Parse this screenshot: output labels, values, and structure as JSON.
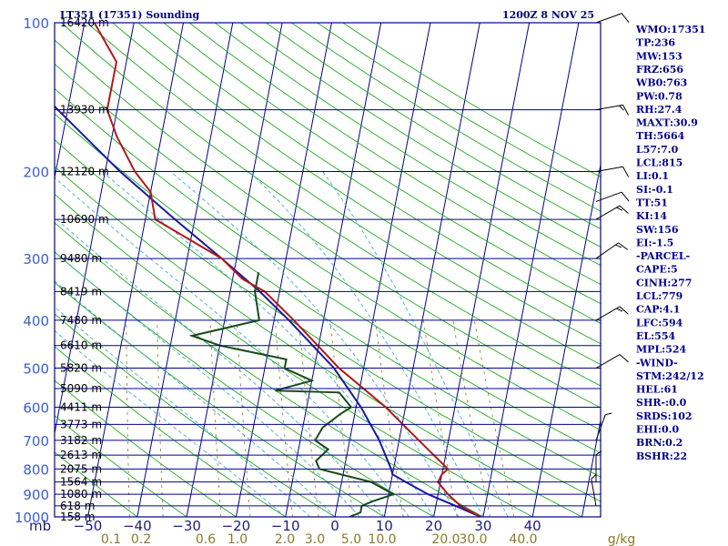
{
  "header": {
    "station": "LT351 (17351) Sounding",
    "time": "1200Z  8 NOV 25"
  },
  "indices": [
    "WMO:17351",
    "TP:236",
    "MW:153",
    "FRZ:656",
    "WB0:763",
    "PW:0.78",
    "RH:27.4",
    "MAXT:30.9",
    "TH:5664",
    "L57:7.0",
    "LCL:815",
    "LI:0.1",
    "SI:-0.1",
    "TT:51",
    "KI:14",
    "SW:156",
    "EI:-1.5",
    "-PARCEL-",
    "CAPE:5",
    "CINH:277",
    "LCL:779",
    "CAP:4.1",
    "LFC:594",
    "EL:554",
    "MPL:524",
    "-WIND-",
    "STM:242/12",
    "HEL:61",
    "SHR-:0.0",
    "SRDS:102",
    "EHI:0.0",
    "BRN:0.2",
    "BSHR:22"
  ],
  "colors": {
    "isobar": "#00008b",
    "isotherm": "#00008b",
    "dry_adiabat": "#22aa22",
    "moist_adiabat": "#4aa8d8",
    "mixing_ratio": "#8a7a2a",
    "temperature": "#b01818",
    "dewpoint": "#1a4a1a",
    "parcel": "#1a1aa0"
  },
  "chart_data": {
    "type": "line",
    "title": "LT351 (17351) Sounding",
    "xlabel": "",
    "ylabel": "mb",
    "yscale": "log",
    "pressure_levels": [
      100,
      200,
      300,
      400,
      500,
      600,
      700,
      800,
      900,
      1000
    ],
    "pressure_labels": [
      "100",
      "200",
      "300",
      "400",
      "500",
      "600",
      "700",
      "800",
      "900",
      "1000"
    ],
    "x_unit_label": "mb",
    "temperature_ticks": [
      "−50",
      "−40",
      "−30",
      "−20",
      "−10",
      "0",
      "10",
      "20",
      "30",
      "40"
    ],
    "temperature_tick_values": [
      -50,
      -40,
      -30,
      -20,
      -10,
      0,
      10,
      20,
      30,
      40
    ],
    "mixing_ratio_label_unit": "g/kg",
    "mixing_ratio_labels": [
      "0.1",
      "0.2",
      "0.6",
      "1.0",
      "2.0",
      "3.0",
      "5.0",
      "10.0",
      "20.0",
      "30.0",
      "40.0"
    ],
    "heights": [
      {
        "p": 100,
        "label": "16420 m"
      },
      {
        "p": 150,
        "label": "13930 m"
      },
      {
        "p": 200,
        "label": "12120 m"
      },
      {
        "p": 250,
        "label": "10690 m"
      },
      {
        "p": 300,
        "label": "9480 m"
      },
      {
        "p": 350,
        "label": "8419 m"
      },
      {
        "p": 400,
        "label": "7480 m"
      },
      {
        "p": 450,
        "label": "6610 m"
      },
      {
        "p": 500,
        "label": "5820 m"
      },
      {
        "p": 550,
        "label": "5090 m"
      },
      {
        "p": 600,
        "label": "4411 m"
      },
      {
        "p": 650,
        "label": "3773 m"
      },
      {
        "p": 700,
        "label": "3182 m"
      },
      {
        "p": 750,
        "label": "2613 m"
      },
      {
        "p": 800,
        "label": "2075 m"
      },
      {
        "p": 850,
        "label": "1564 m"
      },
      {
        "p": 900,
        "label": "1080 m"
      },
      {
        "p": 950,
        "label": "618 m"
      },
      {
        "p": 1000,
        "label": "158 m"
      }
    ],
    "series": [
      {
        "key": "temperature",
        "points": [
          [
            1000,
            29.5
          ],
          [
            950,
            25
          ],
          [
            900,
            22
          ],
          [
            850,
            19.5
          ],
          [
            820,
            20
          ],
          [
            800,
            21
          ],
          [
            770,
            19
          ],
          [
            700,
            14
          ],
          [
            600,
            6
          ],
          [
            500,
            -5
          ],
          [
            400,
            -16
          ],
          [
            350,
            -23
          ],
          [
            330,
            -28
          ],
          [
            300,
            -33
          ],
          [
            250,
            -48
          ],
          [
            220,
            -50
          ],
          [
            200,
            -54
          ],
          [
            170,
            -59
          ],
          [
            150,
            -62
          ],
          [
            120,
            -62
          ],
          [
            100,
            -68
          ]
        ]
      },
      {
        "key": "dewpoint",
        "points": [
          [
            1000,
            3
          ],
          [
            980,
            5
          ],
          [
            950,
            5
          ],
          [
            930,
            7
          ],
          [
            900,
            11
          ],
          [
            850,
            6
          ],
          [
            800,
            -5
          ],
          [
            770,
            -6
          ],
          [
            730,
            -4
          ],
          [
            700,
            -7
          ],
          [
            660,
            -6
          ],
          [
            620,
            -3
          ],
          [
            600,
            -1
          ],
          [
            560,
            -4
          ],
          [
            555,
            -17
          ],
          [
            530,
            -10
          ],
          [
            500,
            -16
          ],
          [
            480,
            -16
          ],
          [
            450,
            -30
          ],
          [
            430,
            -36
          ],
          [
            400,
            -23
          ],
          [
            350,
            -25
          ],
          [
            320,
            -25
          ]
        ]
      },
      {
        "key": "parcel",
        "points": [
          [
            1000,
            29.5
          ],
          [
            950,
            24
          ],
          [
            900,
            18
          ],
          [
            850,
            13
          ],
          [
            820,
            10
          ],
          [
            800,
            9.5
          ],
          [
            700,
            6
          ],
          [
            600,
            1
          ],
          [
            500,
            -6
          ],
          [
            400,
            -17
          ],
          [
            350,
            -24
          ],
          [
            300,
            -33
          ],
          [
            250,
            -44
          ],
          [
            200,
            -57
          ],
          [
            150,
            -72
          ],
          [
            120,
            -83
          ],
          [
            100,
            -95
          ]
        ]
      }
    ],
    "wind_barbs": [
      {
        "p": 100,
        "dir": 250,
        "spd": 10
      },
      {
        "p": 150,
        "dir": 260,
        "spd": 15
      },
      {
        "p": 200,
        "dir": 260,
        "spd": 10
      },
      {
        "p": 230,
        "dir": 250,
        "spd": 10
      },
      {
        "p": 250,
        "dir": 240,
        "spd": 15
      },
      {
        "p": 300,
        "dir": 235,
        "spd": 15
      },
      {
        "p": 400,
        "dir": 240,
        "spd": 15
      },
      {
        "p": 500,
        "dir": 240,
        "spd": 10
      },
      {
        "p": 700,
        "dir": 200,
        "spd": 5
      },
      {
        "p": 850,
        "dir": 180,
        "spd": 5
      },
      {
        "p": 950,
        "dir": 170,
        "spd": 5
      }
    ]
  }
}
